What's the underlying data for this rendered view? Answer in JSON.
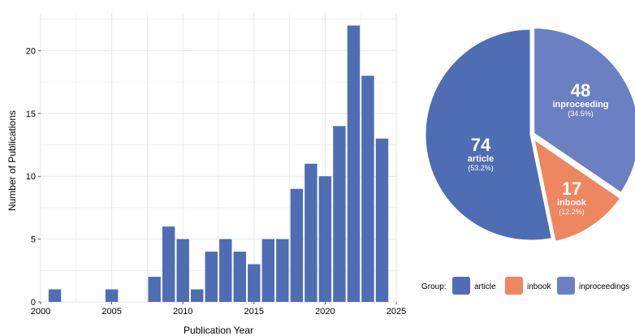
{
  "colors": {
    "article": "#4f6db3",
    "inbook": "#ee8660",
    "inproceedings": "#6b80c3",
    "grid": "#e6e6e6"
  },
  "chart_data": [
    {
      "type": "bar",
      "xlabel": "Publication Year",
      "ylabel": "Number of Publications",
      "xlim": [
        2000,
        2025
      ],
      "ylim": [
        0,
        23
      ],
      "xticks": [
        2000,
        2005,
        2010,
        2015,
        2020,
        2025
      ],
      "yticks": [
        0,
        5,
        10,
        15,
        20
      ],
      "grid": true,
      "x": [
        2001,
        2005,
        2008,
        2009,
        2010,
        2011,
        2012,
        2013,
        2014,
        2015,
        2016,
        2017,
        2018,
        2019,
        2020,
        2021,
        2022,
        2023,
        2024
      ],
      "values": [
        1,
        1,
        2,
        6,
        5,
        1,
        4,
        5,
        4,
        3,
        5,
        5,
        9,
        11,
        10,
        14,
        22,
        18,
        13
      ],
      "color": "#4f6db3"
    },
    {
      "type": "pie",
      "slices": [
        {
          "label": "article",
          "value": 74,
          "percent": "(53.2%)",
          "color": "#4f6db3"
        },
        {
          "label": "inbook",
          "value": 17,
          "percent": "(12.2%)",
          "color": "#ee8660"
        },
        {
          "label": "inproceeding",
          "value": 48,
          "percent": "(34.5%)",
          "color": "#6b80c3"
        }
      ],
      "legend": {
        "position": "bottom",
        "title": "Group:",
        "items": [
          {
            "label": "article",
            "color": "#4f6db3"
          },
          {
            "label": "inbook",
            "color": "#ee8660"
          },
          {
            "label": "inproceedings",
            "color": "#6b80c3"
          }
        ]
      }
    }
  ]
}
